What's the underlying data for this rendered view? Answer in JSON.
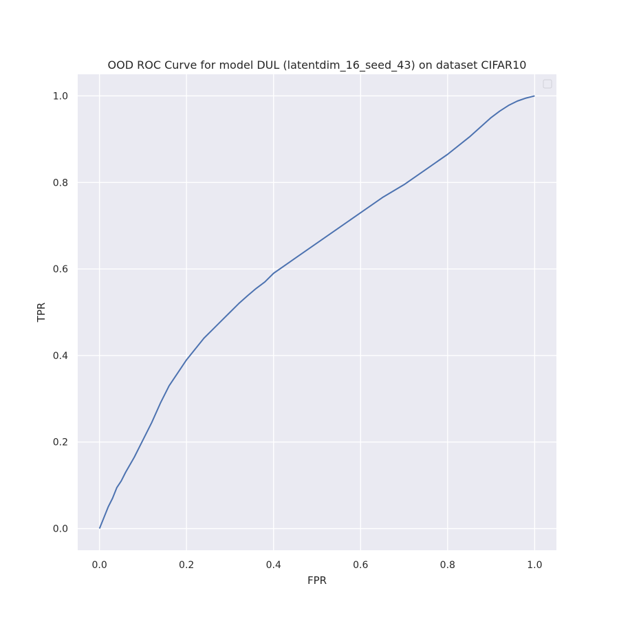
{
  "chart_data": {
    "type": "line",
    "title": "OOD ROC Curve for model DUL (latentdim_16_seed_43) on dataset CIFAR10",
    "xlabel": "FPR",
    "ylabel": "TPR",
    "xlim": [
      -0.05,
      1.05
    ],
    "ylim": [
      -0.05,
      1.05
    ],
    "xticks": [
      0.0,
      0.2,
      0.4,
      0.6,
      0.8,
      1.0
    ],
    "yticks": [
      0.0,
      0.2,
      0.4,
      0.6,
      0.8,
      1.0
    ],
    "xtick_labels": [
      "0.0",
      "0.2",
      "0.4",
      "0.6",
      "0.8",
      "1.0"
    ],
    "ytick_labels": [
      "0.0",
      "0.2",
      "0.4",
      "0.6",
      "0.8",
      "1.0"
    ],
    "grid": true,
    "legend": {
      "placement": "upper-right",
      "entries": []
    },
    "background_color": "#eaeaf2",
    "grid_color": "#ffffff",
    "series": [
      {
        "color": "#4c72b0",
        "x": [
          0.0,
          0.01,
          0.02,
          0.03,
          0.04,
          0.05,
          0.06,
          0.08,
          0.1,
          0.12,
          0.14,
          0.16,
          0.18,
          0.2,
          0.22,
          0.24,
          0.26,
          0.28,
          0.3,
          0.32,
          0.34,
          0.36,
          0.38,
          0.4,
          0.45,
          0.5,
          0.55,
          0.6,
          0.65,
          0.7,
          0.75,
          0.8,
          0.85,
          0.9,
          0.92,
          0.94,
          0.96,
          0.98,
          1.0
        ],
        "y": [
          0.0,
          0.025,
          0.05,
          0.07,
          0.095,
          0.11,
          0.13,
          0.165,
          0.205,
          0.245,
          0.29,
          0.33,
          0.36,
          0.39,
          0.415,
          0.44,
          0.46,
          0.48,
          0.5,
          0.52,
          0.538,
          0.555,
          0.57,
          0.59,
          0.625,
          0.66,
          0.695,
          0.73,
          0.765,
          0.795,
          0.83,
          0.865,
          0.905,
          0.95,
          0.965,
          0.978,
          0.988,
          0.995,
          1.0
        ]
      }
    ]
  }
}
